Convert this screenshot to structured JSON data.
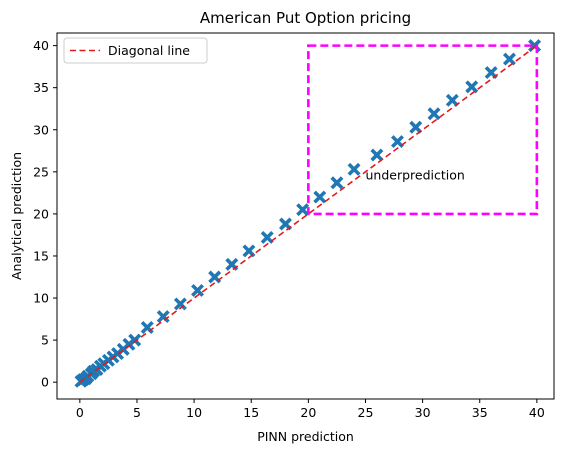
{
  "chart_data": {
    "type": "scatter",
    "title": "American Put Option pricing",
    "xlabel": "PINN prediction",
    "ylabel": "Analytical prediction",
    "xlim": [
      -2,
      41.5
    ],
    "ylim": [
      -2,
      41.5
    ],
    "xticks": [
      0,
      5,
      10,
      15,
      20,
      25,
      30,
      35,
      40
    ],
    "yticks": [
      0,
      5,
      10,
      15,
      20,
      25,
      30,
      35,
      40
    ],
    "grid": false,
    "legend_position": "top-left",
    "series": [
      {
        "name": "",
        "marker": "x",
        "color": "#1f77b4",
        "points": [
          [
            0.1,
            0.1
          ],
          [
            0.3,
            0.3
          ],
          [
            0.5,
            0.4
          ],
          [
            0.7,
            0.7
          ],
          [
            1.0,
            1.0
          ],
          [
            1.2,
            1.3
          ],
          [
            1.5,
            1.5
          ],
          [
            1.8,
            1.9
          ],
          [
            2.1,
            2.2
          ],
          [
            2.5,
            2.6
          ],
          [
            2.9,
            3.0
          ],
          [
            3.3,
            3.4
          ],
          [
            3.8,
            3.9
          ],
          [
            4.3,
            4.5
          ],
          [
            4.8,
            5.0
          ],
          [
            5.9,
            6.5
          ],
          [
            7.3,
            7.8
          ],
          [
            8.8,
            9.3
          ],
          [
            10.3,
            10.9
          ],
          [
            11.8,
            12.5
          ],
          [
            13.3,
            14.0
          ],
          [
            14.8,
            15.6
          ],
          [
            16.4,
            17.2
          ],
          [
            18.0,
            18.8
          ],
          [
            19.5,
            20.5
          ],
          [
            21.0,
            22.0
          ],
          [
            22.5,
            23.7
          ],
          [
            24.0,
            25.3
          ],
          [
            26.0,
            27.0
          ],
          [
            27.8,
            28.6
          ],
          [
            29.4,
            30.3
          ],
          [
            31.0,
            31.9
          ],
          [
            32.6,
            33.5
          ],
          [
            34.3,
            35.1
          ],
          [
            36.0,
            36.8
          ],
          [
            37.6,
            38.4
          ],
          [
            39.8,
            40.0
          ]
        ]
      },
      {
        "name": "Diagonal line",
        "type": "line",
        "dash": "dashed",
        "color": "#e31a1c",
        "points": [
          [
            0,
            0
          ],
          [
            40,
            40
          ]
        ]
      }
    ],
    "annotation": {
      "text": "underprediction",
      "x": 25,
      "y": 24.6,
      "box": {
        "x0": 20,
        "x1": 40,
        "y0": 20,
        "y1": 40,
        "color": "#ff00ff",
        "dash": "dashed"
      }
    }
  }
}
